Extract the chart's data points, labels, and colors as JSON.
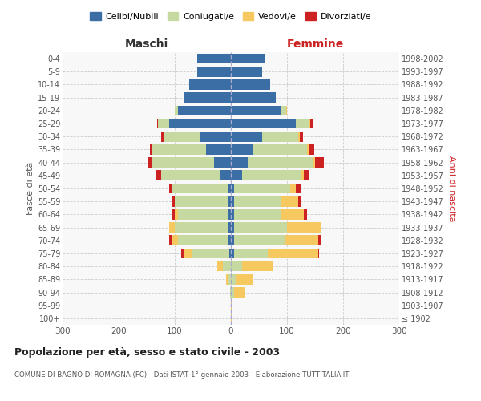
{
  "age_groups": [
    "100+",
    "95-99",
    "90-94",
    "85-89",
    "80-84",
    "75-79",
    "70-74",
    "65-69",
    "60-64",
    "55-59",
    "50-54",
    "45-49",
    "40-44",
    "35-39",
    "30-34",
    "25-29",
    "20-24",
    "15-19",
    "10-14",
    "5-9",
    "0-4"
  ],
  "birth_years": [
    "≤ 1902",
    "1903-1907",
    "1908-1912",
    "1913-1917",
    "1918-1922",
    "1923-1927",
    "1928-1932",
    "1933-1937",
    "1938-1942",
    "1943-1947",
    "1948-1952",
    "1953-1957",
    "1958-1962",
    "1963-1967",
    "1968-1972",
    "1973-1977",
    "1978-1982",
    "1983-1987",
    "1988-1992",
    "1993-1997",
    "1998-2002"
  ],
  "maschi": {
    "celibi": [
      0,
      0,
      0,
      0,
      0,
      3,
      5,
      5,
      5,
      5,
      5,
      20,
      30,
      45,
      55,
      110,
      95,
      85,
      75,
      60,
      60
    ],
    "coniugati": [
      0,
      0,
      2,
      5,
      15,
      65,
      90,
      95,
      90,
      95,
      100,
      105,
      110,
      95,
      65,
      20,
      5,
      0,
      0,
      0,
      0
    ],
    "vedovi": [
      0,
      0,
      0,
      3,
      10,
      15,
      10,
      10,
      5,
      0,
      0,
      0,
      0,
      0,
      0,
      0,
      0,
      0,
      0,
      0,
      0
    ],
    "divorziati": [
      0,
      0,
      0,
      0,
      0,
      5,
      5,
      0,
      5,
      5,
      5,
      8,
      8,
      5,
      5,
      2,
      0,
      0,
      0,
      0,
      0
    ]
  },
  "femmine": {
    "nubili": [
      0,
      0,
      0,
      0,
      0,
      5,
      5,
      5,
      5,
      5,
      5,
      20,
      30,
      40,
      55,
      115,
      90,
      80,
      70,
      55,
      60
    ],
    "coniugate": [
      0,
      0,
      5,
      8,
      20,
      60,
      90,
      95,
      85,
      85,
      100,
      105,
      115,
      95,
      65,
      25,
      8,
      0,
      0,
      0,
      0
    ],
    "vedove": [
      1,
      2,
      20,
      30,
      55,
      90,
      60,
      60,
      40,
      30,
      10,
      5,
      5,
      5,
      3,
      2,
      2,
      0,
      0,
      0,
      0
    ],
    "divorziate": [
      0,
      0,
      0,
      0,
      0,
      2,
      5,
      0,
      5,
      5,
      10,
      10,
      15,
      8,
      5,
      3,
      0,
      0,
      0,
      0,
      0
    ]
  },
  "colors": {
    "celibi_nubili": "#3A6EA5",
    "coniugati": "#C5D9A0",
    "vedovi": "#F5C860",
    "divorziati": "#CC2222"
  },
  "title": "Popolazione per età, sesso e stato civile - 2003",
  "subtitle": "COMUNE DI BAGNO DI ROMAGNA (FC) - Dati ISTAT 1° gennaio 2003 - Elaborazione TUTTITALIA.IT",
  "xlabel_left": "Maschi",
  "xlabel_right": "Femmine",
  "ylabel_left": "Fasce di età",
  "ylabel_right": "Anni di nascita",
  "xlim": 300,
  "legend_labels": [
    "Celibi/Nubili",
    "Coniugati/e",
    "Vedovi/e",
    "Divorziati/e"
  ],
  "background_color": "#FFFFFF"
}
